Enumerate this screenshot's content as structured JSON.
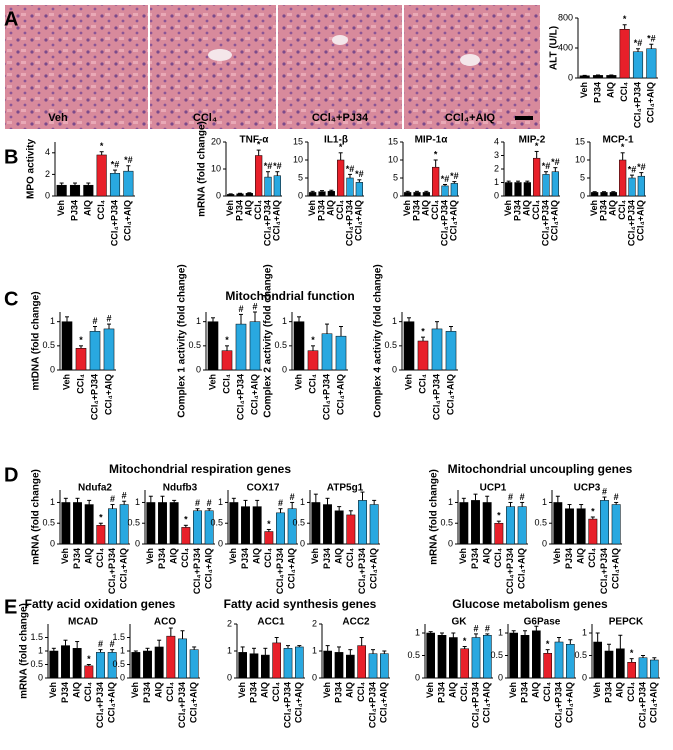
{
  "panel_labels": [
    "A",
    "B",
    "C",
    "D",
    "E"
  ],
  "headings": [
    "Mitochondrial function",
    "Mitochondrial respiration genes",
    "Mitochondrial uncoupling genes",
    "Fatty acid oxidation genes",
    "Fatty acid synthesis genes",
    "Glucose metabolism genes"
  ],
  "image_labels": [
    "Veh",
    "CCl₄",
    "CCl₄+PJ34",
    "CCl₄+AIQ"
  ],
  "chart_data": [
    {
      "type": "bar",
      "ylabel": "ALT (U/L)",
      "categories": [
        "Veh",
        "PJ34",
        "AIQ",
        "CCl₄",
        "CCl₄+PJ34",
        "CCl₄+AIQ"
      ],
      "values": [
        30,
        35,
        35,
        650,
        350,
        390
      ],
      "errors": [
        5,
        5,
        5,
        60,
        40,
        60
      ],
      "annotations": [
        null,
        null,
        null,
        "*",
        "*#",
        "*#"
      ],
      "colors": [
        "#000000",
        "#000000",
        "#000000",
        "#e8202a",
        "#29a8e0",
        "#29a8e0"
      ],
      "ylim": [
        0,
        800
      ],
      "yticks": [
        0,
        400,
        800
      ]
    },
    {
      "type": "bar",
      "ylabel": "MPO activity",
      "categories": [
        "Veh",
        "PJ34",
        "AIQ",
        "CCl₄",
        "CCl₄+PJ34",
        "CCl₄+AIQ"
      ],
      "values": [
        1,
        1,
        1,
        3.8,
        2.1,
        2.3
      ],
      "errors": [
        0.2,
        0.2,
        0.2,
        0.3,
        0.3,
        0.5
      ],
      "annotations": [
        null,
        null,
        null,
        "*",
        "*#",
        "*#"
      ],
      "colors": [
        "#000000",
        "#000000",
        "#000000",
        "#e8202a",
        "#29a8e0",
        "#29a8e0"
      ],
      "ylim": [
        0,
        5
      ],
      "yticks": [
        0,
        2,
        4
      ]
    },
    {
      "type": "bar",
      "title": "TNF-α",
      "ylabel": "mRNA (fold change)",
      "categories": [
        "Veh",
        "PJ34",
        "AIQ",
        "CCl₄",
        "CCl₄+PJ34",
        "CCl₄+AIQ"
      ],
      "values": [
        0.6,
        0.8,
        1,
        15,
        7,
        7.5
      ],
      "errors": [
        0.2,
        0.2,
        0.2,
        2,
        2,
        1.5
      ],
      "annotations": [
        null,
        null,
        null,
        "*",
        "*#",
        "*#"
      ],
      "colors": [
        "#000000",
        "#000000",
        "#000000",
        "#e8202a",
        "#29a8e0",
        "#29a8e0"
      ],
      "ylim": [
        0,
        20
      ],
      "yticks": [
        0,
        10,
        20
      ]
    },
    {
      "type": "bar",
      "title": "IL1-β",
      "categories": [
        "Veh",
        "PJ34",
        "AIQ",
        "CCl₄",
        "CCl₄+PJ34",
        "CCl₄+AIQ"
      ],
      "values": [
        1,
        1.2,
        1.3,
        10,
        5,
        3.8
      ],
      "errors": [
        0.3,
        0.3,
        0.3,
        2,
        1,
        0.7
      ],
      "annotations": [
        null,
        null,
        null,
        "*",
        "*#",
        "*#"
      ],
      "colors": [
        "#000000",
        "#000000",
        "#000000",
        "#e8202a",
        "#29a8e0",
        "#29a8e0"
      ],
      "ylim": [
        0,
        15
      ],
      "yticks": [
        0,
        5,
        10,
        15
      ]
    },
    {
      "type": "bar",
      "title": "MIP-1α",
      "categories": [
        "Veh",
        "PJ34",
        "AIQ",
        "CCl₄",
        "CCl₄+PJ34",
        "CCl₄+AIQ"
      ],
      "values": [
        1,
        1,
        1,
        8,
        2.8,
        3.5
      ],
      "errors": [
        0.3,
        0.3,
        0.3,
        2,
        0.4,
        0.5
      ],
      "annotations": [
        null,
        null,
        null,
        "*",
        "*#",
        "*#"
      ],
      "colors": [
        "#000000",
        "#000000",
        "#000000",
        "#e8202a",
        "#29a8e0",
        "#29a8e0"
      ],
      "ylim": [
        0,
        15
      ],
      "yticks": [
        0,
        5,
        10,
        15
      ]
    },
    {
      "type": "bar",
      "title": "MIP-2",
      "categories": [
        "Veh",
        "PJ34",
        "AIQ",
        "CCl₄",
        "CCl₄+PJ34",
        "CCl₄+AIQ"
      ],
      "values": [
        1,
        1,
        1,
        2.8,
        1.6,
        1.8
      ],
      "errors": [
        0.1,
        0.1,
        0.1,
        0.5,
        0.2,
        0.3
      ],
      "annotations": [
        null,
        null,
        null,
        "*",
        "*#",
        "*#"
      ],
      "colors": [
        "#000000",
        "#000000",
        "#000000",
        "#e8202a",
        "#29a8e0",
        "#29a8e0"
      ],
      "ylim": [
        0,
        4
      ],
      "yticks": [
        0,
        1,
        2,
        3,
        4
      ]
    },
    {
      "type": "bar",
      "title": "MCP-1",
      "categories": [
        "Veh",
        "PJ34",
        "AIQ",
        "CCl₄",
        "CCl₄+PJ34",
        "CCl₄+AIQ"
      ],
      "values": [
        1,
        1,
        1,
        10,
        5,
        5.5
      ],
      "errors": [
        0.2,
        0.2,
        0.2,
        2,
        0.8,
        1
      ],
      "annotations": [
        null,
        null,
        null,
        "*",
        "*#",
        "*#"
      ],
      "colors": [
        "#000000",
        "#000000",
        "#000000",
        "#e8202a",
        "#29a8e0",
        "#29a8e0"
      ],
      "ylim": [
        0,
        15
      ],
      "yticks": [
        0,
        5,
        10,
        15
      ]
    },
    {
      "type": "bar",
      "ylabel": "mtDNA (fold change)",
      "categories": [
        "Veh",
        "CCl₄",
        "CCl₄+PJ34",
        "CCl₄+AIQ"
      ],
      "values": [
        1,
        0.45,
        0.8,
        0.85
      ],
      "errors": [
        0.1,
        0.05,
        0.1,
        0.1
      ],
      "annotations": [
        null,
        "*",
        "#",
        "#"
      ],
      "colors": [
        "#000000",
        "#e8202a",
        "#29a8e0",
        "#29a8e0"
      ],
      "ylim": [
        0,
        1.2
      ],
      "yticks": [
        0,
        0.5,
        1
      ]
    },
    {
      "type": "bar",
      "ylabel": "Complex 1 activity (fold change)",
      "categories": [
        "Veh",
        "CCl₄",
        "CCl₄+PJ34",
        "CCl₄+AIQ"
      ],
      "values": [
        1,
        0.4,
        0.95,
        1
      ],
      "errors": [
        0.08,
        0.1,
        0.2,
        0.2
      ],
      "annotations": [
        null,
        "*",
        "#",
        "#"
      ],
      "colors": [
        "#000000",
        "#e8202a",
        "#29a8e0",
        "#29a8e0"
      ],
      "ylim": [
        0,
        1.2
      ],
      "yticks": [
        0,
        0.5,
        1
      ]
    },
    {
      "type": "bar",
      "ylabel": "Complex 2 activity (fold change)",
      "categories": [
        "Veh",
        "CCl₄",
        "CCl₄+PJ34",
        "CCl₄+AIQ"
      ],
      "values": [
        1,
        0.4,
        0.75,
        0.7
      ],
      "errors": [
        0.1,
        0.1,
        0.2,
        0.2
      ],
      "annotations": [
        null,
        "*",
        null,
        null
      ],
      "colors": [
        "#000000",
        "#e8202a",
        "#29a8e0",
        "#29a8e0"
      ],
      "ylim": [
        0,
        1.2
      ],
      "yticks": [
        0,
        0.5,
        1
      ]
    },
    {
      "type": "bar",
      "ylabel": "Complex 4 activity (fold change)",
      "categories": [
        "Veh",
        "CCl₄",
        "CCl₄+PJ34",
        "CCl₄+AIQ"
      ],
      "values": [
        1,
        0.6,
        0.85,
        0.8
      ],
      "errors": [
        0.08,
        0.08,
        0.15,
        0.1
      ],
      "annotations": [
        null,
        "*",
        null,
        null
      ],
      "colors": [
        "#000000",
        "#e8202a",
        "#29a8e0",
        "#29a8e0"
      ],
      "ylim": [
        0,
        1.2
      ],
      "yticks": [
        0,
        0.5,
        1
      ]
    },
    {
      "type": "bar",
      "title": "Ndufa2",
      "ylabel": "mRNA (fold change)",
      "categories": [
        "Veh",
        "PJ34",
        "AIQ",
        "CCl₄",
        "CCl₄+PJ34",
        "CCl₄+AIQ"
      ],
      "values": [
        1,
        1,
        0.95,
        0.45,
        0.85,
        0.95
      ],
      "errors": [
        0.1,
        0.1,
        0.1,
        0.05,
        0.1,
        0.08
      ],
      "annotations": [
        null,
        null,
        null,
        "*",
        "#",
        "#"
      ],
      "colors": [
        "#000000",
        "#000000",
        "#000000",
        "#e8202a",
        "#29a8e0",
        "#29a8e0"
      ],
      "ylim": [
        0,
        1.3
      ],
      "yticks": [
        0,
        0.5,
        1
      ]
    },
    {
      "type": "bar",
      "title": "Ndufb3",
      "categories": [
        "Veh",
        "PJ34",
        "AIQ",
        "CCl₄",
        "CCl₄+PJ34",
        "CCl₄+AIQ"
      ],
      "values": [
        1,
        1,
        1,
        0.4,
        0.8,
        0.8
      ],
      "errors": [
        0.15,
        0.15,
        0.05,
        0.05,
        0.05,
        0.05
      ],
      "annotations": [
        null,
        null,
        null,
        "*",
        "#",
        "#"
      ],
      "colors": [
        "#000000",
        "#000000",
        "#000000",
        "#e8202a",
        "#29a8e0",
        "#29a8e0"
      ],
      "ylim": [
        0,
        1.3
      ],
      "yticks": [
        0,
        0.5,
        1
      ]
    },
    {
      "type": "bar",
      "title": "COX17",
      "categories": [
        "Veh",
        "PJ34",
        "AIQ",
        "CCl₄",
        "CCl₄+PJ34",
        "CCl₄+AIQ"
      ],
      "values": [
        1,
        0.9,
        0.9,
        0.3,
        0.75,
        0.85
      ],
      "errors": [
        0.1,
        0.15,
        0.15,
        0.05,
        0.1,
        0.15
      ],
      "annotations": [
        null,
        null,
        null,
        "*",
        "#",
        "#"
      ],
      "colors": [
        "#000000",
        "#000000",
        "#000000",
        "#e8202a",
        "#29a8e0",
        "#29a8e0"
      ],
      "ylim": [
        0,
        1.3
      ],
      "yticks": [
        0,
        0.5,
        1
      ]
    },
    {
      "type": "bar",
      "title": "ATP5g1",
      "categories": [
        "Veh",
        "PJ34",
        "AIQ",
        "CCl₄",
        "CCl₄+PJ34",
        "CCl₄+AIQ"
      ],
      "values": [
        1,
        0.95,
        0.8,
        0.7,
        1.05,
        0.95
      ],
      "errors": [
        0.2,
        0.15,
        0.1,
        0.1,
        0.2,
        0.1
      ],
      "annotations": [
        null,
        null,
        null,
        null,
        null,
        null
      ],
      "colors": [
        "#000000",
        "#000000",
        "#000000",
        "#e8202a",
        "#29a8e0",
        "#29a8e0"
      ],
      "ylim": [
        0,
        1.3
      ],
      "yticks": [
        0,
        0.5,
        1
      ]
    },
    {
      "type": "bar",
      "title": "UCP1",
      "ylabel": "mRNA (fold change)",
      "categories": [
        "Veh",
        "PJ34",
        "AIQ",
        "CCl₄",
        "CCl₄+PJ34",
        "CCl₄+AIQ"
      ],
      "values": [
        1,
        1.05,
        1,
        0.5,
        0.9,
        0.9
      ],
      "errors": [
        0.1,
        0.15,
        0.15,
        0.05,
        0.1,
        0.1
      ],
      "annotations": [
        null,
        null,
        null,
        "*",
        "#",
        "#"
      ],
      "colors": [
        "#000000",
        "#000000",
        "#000000",
        "#e8202a",
        "#29a8e0",
        "#29a8e0"
      ],
      "ylim": [
        0,
        1.3
      ],
      "yticks": [
        0,
        0.5,
        1
      ]
    },
    {
      "type": "bar",
      "title": "UCP3",
      "categories": [
        "Veh",
        "PJ34",
        "AIQ",
        "CCl₄",
        "CCl₄+PJ34",
        "CCl₄+AIQ"
      ],
      "values": [
        1,
        0.85,
        0.85,
        0.6,
        1.05,
        0.95
      ],
      "errors": [
        0.15,
        0.1,
        0.1,
        0.05,
        0.08,
        0.05
      ],
      "annotations": [
        null,
        null,
        null,
        "*",
        "#",
        "#"
      ],
      "colors": [
        "#000000",
        "#000000",
        "#000000",
        "#e8202a",
        "#29a8e0",
        "#29a8e0"
      ],
      "ylim": [
        0,
        1.3
      ],
      "yticks": [
        0,
        0.5,
        1
      ]
    },
    {
      "type": "bar",
      "title": "MCAD",
      "ylabel": "mRNA (fold change)",
      "categories": [
        "Veh",
        "PJ34",
        "AIQ",
        "CCl₄",
        "CCl₄+PJ34",
        "CCl₄+AIQ"
      ],
      "values": [
        1,
        1.2,
        1.1,
        0.45,
        0.95,
        0.95
      ],
      "errors": [
        0.1,
        0.2,
        0.25,
        0.05,
        0.1,
        0.1
      ],
      "annotations": [
        null,
        null,
        null,
        "*",
        "#",
        "#"
      ],
      "colors": [
        "#000000",
        "#000000",
        "#000000",
        "#e8202a",
        "#29a8e0",
        "#29a8e0"
      ],
      "ylim": [
        0,
        2
      ],
      "yticks": [
        0,
        0.5,
        1,
        1.5
      ]
    },
    {
      "type": "bar",
      "title": "ACO",
      "categories": [
        "Veh",
        "PJ34",
        "AIQ",
        "CCl₄",
        "CCl₄+PJ34",
        "CCl₄+AIQ"
      ],
      "values": [
        0.95,
        1,
        1.15,
        1.55,
        1.45,
        1.05
      ],
      "errors": [
        0.05,
        0.1,
        0.25,
        0.3,
        0.3,
        0.1
      ],
      "annotations": [
        null,
        null,
        null,
        null,
        null,
        null
      ],
      "colors": [
        "#000000",
        "#000000",
        "#000000",
        "#e8202a",
        "#29a8e0",
        "#29a8e0"
      ],
      "ylim": [
        0,
        2
      ],
      "yticks": [
        0,
        0.5,
        1,
        1.5
      ]
    },
    {
      "type": "bar",
      "title": "ACC1",
      "categories": [
        "Veh",
        "PJ34",
        "AIQ",
        "CCl₄",
        "CCl₄+PJ34",
        "CCl₄+AIQ"
      ],
      "values": [
        0.95,
        0.9,
        0.85,
        1.3,
        1.1,
        1.15
      ],
      "errors": [
        0.2,
        0.2,
        0.25,
        0.2,
        0.1,
        0.05
      ],
      "annotations": [
        null,
        null,
        null,
        null,
        null,
        null
      ],
      "colors": [
        "#000000",
        "#000000",
        "#000000",
        "#e8202a",
        "#29a8e0",
        "#29a8e0"
      ],
      "ylim": [
        0,
        2
      ],
      "yticks": [
        0,
        1,
        2
      ]
    },
    {
      "type": "bar",
      "title": "ACC2",
      "categories": [
        "Veh",
        "PJ34",
        "AIQ",
        "CCl₄",
        "CCl₄+PJ34",
        "CCl₄+AIQ"
      ],
      "values": [
        1,
        0.95,
        0.85,
        1.2,
        0.9,
        0.9
      ],
      "errors": [
        0.2,
        0.2,
        0.2,
        0.3,
        0.15,
        0.1
      ],
      "annotations": [
        null,
        null,
        null,
        null,
        null,
        null
      ],
      "colors": [
        "#000000",
        "#000000",
        "#000000",
        "#e8202a",
        "#29a8e0",
        "#29a8e0"
      ],
      "ylim": [
        0,
        2
      ],
      "yticks": [
        0,
        1,
        2
      ]
    },
    {
      "type": "bar",
      "title": "GK",
      "categories": [
        "Veh",
        "PJ34",
        "AIQ",
        "CCl₄",
        "CCl₄+PJ34",
        "CCl₄+AIQ"
      ],
      "values": [
        1,
        0.95,
        0.9,
        0.65,
        0.9,
        0.95
      ],
      "errors": [
        0.03,
        0.05,
        0.1,
        0.05,
        0.08,
        0.03
      ],
      "annotations": [
        null,
        null,
        null,
        "*",
        "#",
        "#"
      ],
      "colors": [
        "#000000",
        "#000000",
        "#000000",
        "#e8202a",
        "#29a8e0",
        "#29a8e0"
      ],
      "ylim": [
        0,
        1.2
      ],
      "yticks": [
        0,
        0.5,
        1
      ]
    },
    {
      "type": "bar",
      "title": "G6Pase",
      "categories": [
        "Veh",
        "PJ34",
        "AIQ",
        "CCl₄",
        "CCl₄+PJ34",
        "CCl₄+AIQ"
      ],
      "values": [
        1,
        0.95,
        1.05,
        0.55,
        0.8,
        0.75
      ],
      "errors": [
        0.05,
        0.1,
        0.1,
        0.08,
        0.1,
        0.1
      ],
      "annotations": [
        null,
        null,
        null,
        "*",
        null,
        null
      ],
      "colors": [
        "#000000",
        "#000000",
        "#000000",
        "#e8202a",
        "#29a8e0",
        "#29a8e0"
      ],
      "ylim": [
        0,
        1.2
      ],
      "yticks": [
        0,
        0.5,
        1
      ]
    },
    {
      "type": "bar",
      "title": "PEPCK",
      "categories": [
        "Veh",
        "PJ34",
        "AIQ",
        "CCl₄",
        "CCl₄+PJ34",
        "CCl₄+AIQ"
      ],
      "values": [
        0.8,
        0.6,
        0.65,
        0.35,
        0.45,
        0.4
      ],
      "errors": [
        0.2,
        0.15,
        0.3,
        0.08,
        0.05,
        0.05
      ],
      "annotations": [
        null,
        null,
        null,
        "*",
        null,
        null
      ],
      "colors": [
        "#000000",
        "#000000",
        "#000000",
        "#e8202a",
        "#29a8e0",
        "#29a8e0"
      ],
      "ylim": [
        0,
        1.2
      ],
      "yticks": [
        0,
        0.5,
        1
      ]
    }
  ]
}
